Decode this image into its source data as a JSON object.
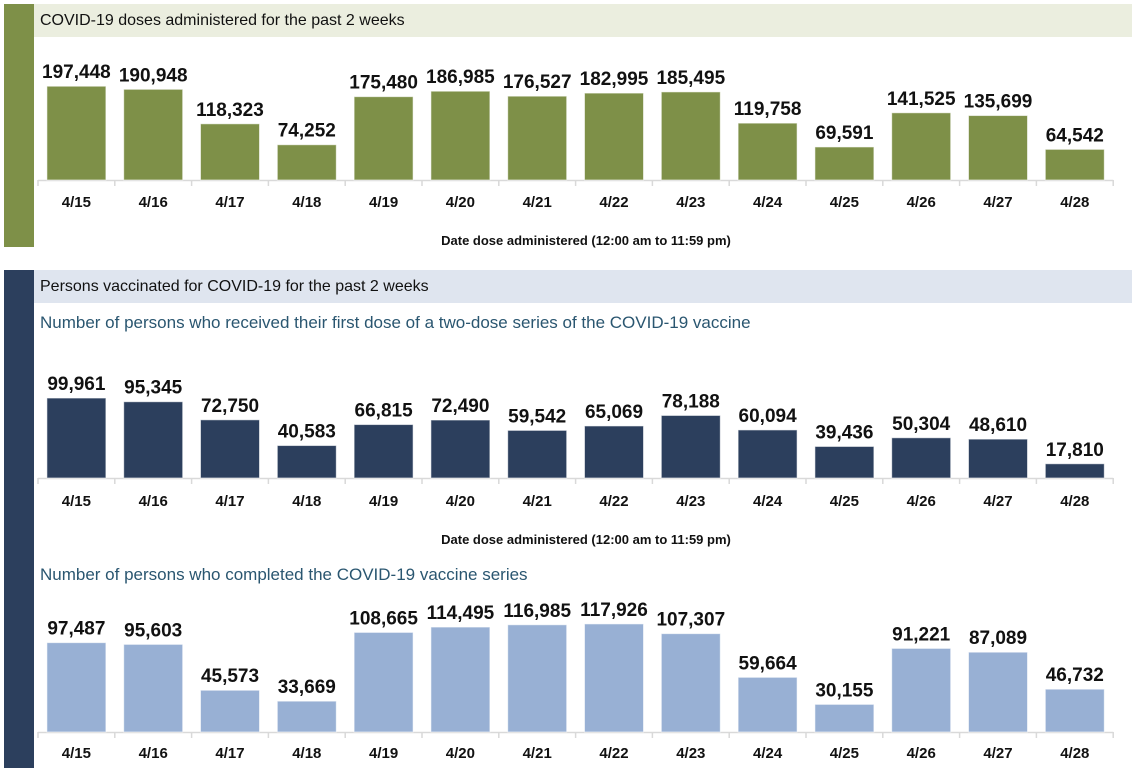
{
  "colors": {
    "doses_accent": "#7e9048",
    "doses_header_bg": "#ebeedf",
    "persons_accent": "#2c3f5d",
    "persons_header_bg": "#dfe5ef",
    "first_dose_bar": "#2c3f5d",
    "completed_bar": "#98b0d4",
    "subtitle_text": "#2a5670"
  },
  "doses_section": {
    "header": "COVID-19 doses administered for the past 2 weeks",
    "xlabel": "Date dose administered (12:00 am to 11:59 pm)"
  },
  "persons_section": {
    "header": "Persons vaccinated for COVID-19 for the past 2 weeks",
    "first_dose_title": "Number of persons who received their first dose of a two-dose series of the COVID-19 vaccine",
    "first_dose_xlabel": "Date dose administered (12:00 am to 11:59 pm)",
    "completed_title": "Number of persons who completed the COVID-19 vaccine series"
  },
  "chart_data": [
    {
      "type": "bar",
      "title": "COVID-19 doses administered for the past 2 weeks",
      "xlabel": "Date dose administered (12:00 am to 11:59 pm)",
      "ylabel": "",
      "categories": [
        "4/15",
        "4/16",
        "4/17",
        "4/18",
        "4/19",
        "4/20",
        "4/21",
        "4/22",
        "4/23",
        "4/24",
        "4/25",
        "4/26",
        "4/27",
        "4/28"
      ],
      "values": [
        197448,
        190948,
        118323,
        74252,
        175480,
        186985,
        176527,
        182995,
        185495,
        119758,
        69591,
        141525,
        135699,
        64542
      ],
      "labels": [
        "197,448",
        "190,948",
        "118,323",
        "74,252",
        "175,480",
        "186,985",
        "176,527",
        "182,995",
        "185,495",
        "119,758",
        "69,591",
        "141,525",
        "135,699",
        "64,542"
      ],
      "ylim": [
        0,
        200000
      ],
      "grid": false,
      "legend": "none"
    },
    {
      "type": "bar",
      "title": "Number of persons who received their first dose of a two-dose series of the COVID-19 vaccine",
      "xlabel": "Date dose administered (12:00 am to 11:59 pm)",
      "ylabel": "",
      "categories": [
        "4/15",
        "4/16",
        "4/17",
        "4/18",
        "4/19",
        "4/20",
        "4/21",
        "4/22",
        "4/23",
        "4/24",
        "4/25",
        "4/26",
        "4/27",
        "4/28"
      ],
      "values": [
        99961,
        95345,
        72750,
        40583,
        66815,
        72490,
        59542,
        65069,
        78188,
        60094,
        39436,
        50304,
        48610,
        17810
      ],
      "labels": [
        "99,961",
        "95,345",
        "72,750",
        "40,583",
        "66,815",
        "72,490",
        "59,542",
        "65,069",
        "78,188",
        "60,094",
        "39,436",
        "50,304",
        "48,610",
        "17,810"
      ],
      "ylim": [
        0,
        100000
      ],
      "grid": false,
      "legend": "none"
    },
    {
      "type": "bar",
      "title": "Number of persons who completed the COVID-19 vaccine series",
      "xlabel": "",
      "ylabel": "",
      "categories": [
        "4/15",
        "4/16",
        "4/17",
        "4/18",
        "4/19",
        "4/20",
        "4/21",
        "4/22",
        "4/23",
        "4/24",
        "4/25",
        "4/26",
        "4/27",
        "4/28"
      ],
      "values": [
        97487,
        95603,
        45573,
        33669,
        108665,
        114495,
        116985,
        117926,
        107307,
        59664,
        30155,
        91221,
        87089,
        46732
      ],
      "labels": [
        "97,487",
        "95,603",
        "45,573",
        "33,669",
        "108,665",
        "114,495",
        "116,985",
        "117,926",
        "107,307",
        "59,664",
        "30,155",
        "91,221",
        "87,089",
        "46,732"
      ],
      "ylim": [
        0,
        120000
      ],
      "grid": false,
      "legend": "none"
    }
  ]
}
